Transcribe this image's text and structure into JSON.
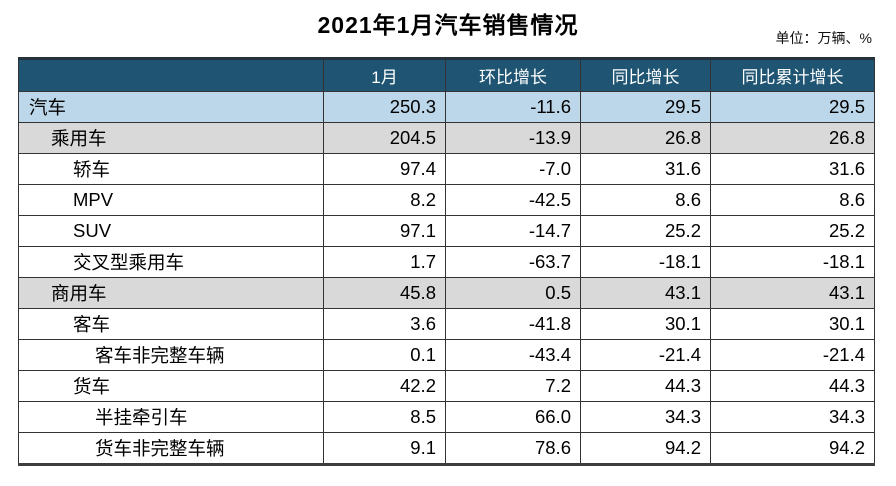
{
  "page": {
    "title": "2021年1月汽车销售情况",
    "unit_note": "单位：万辆、%"
  },
  "colors": {
    "header_bg": "#1F5573",
    "header_text": "#FFFFFF",
    "row_blue": "#BCD6EA",
    "row_gray": "#D9D9D9",
    "grid_line": "#333333"
  },
  "chart_data": {
    "type": "table",
    "title": "2021年1月汽车销售情况",
    "unit": "万辆、%",
    "columns": [
      "",
      "1月",
      "环比增长",
      "同比增长",
      "同比累计增长"
    ],
    "rows": [
      {
        "label": "汽车",
        "indent": 0,
        "highlight": "blue",
        "values": [
          "250.3",
          "-11.6",
          "29.5",
          "29.5"
        ]
      },
      {
        "label": "乘用车",
        "indent": 1,
        "highlight": "gray",
        "values": [
          "204.5",
          "-13.9",
          "26.8",
          "26.8"
        ]
      },
      {
        "label": "轿车",
        "indent": 2,
        "highlight": "none",
        "values": [
          "97.4",
          "-7.0",
          "31.6",
          "31.6"
        ]
      },
      {
        "label": "MPV",
        "indent": 2,
        "highlight": "none",
        "values": [
          "8.2",
          "-42.5",
          "8.6",
          "8.6"
        ]
      },
      {
        "label": "SUV",
        "indent": 2,
        "highlight": "none",
        "values": [
          "97.1",
          "-14.7",
          "25.2",
          "25.2"
        ]
      },
      {
        "label": "交叉型乘用车",
        "indent": 2,
        "highlight": "none",
        "values": [
          "1.7",
          "-63.7",
          "-18.1",
          "-18.1"
        ]
      },
      {
        "label": "商用车",
        "indent": 1,
        "highlight": "gray",
        "values": [
          "45.8",
          "0.5",
          "43.1",
          "43.1"
        ]
      },
      {
        "label": "客车",
        "indent": 2,
        "highlight": "none",
        "values": [
          "3.6",
          "-41.8",
          "30.1",
          "30.1"
        ]
      },
      {
        "label": "客车非完整车辆",
        "indent": 3,
        "highlight": "none",
        "values": [
          "0.1",
          "-43.4",
          "-21.4",
          "-21.4"
        ]
      },
      {
        "label": "货车",
        "indent": 2,
        "highlight": "none",
        "values": [
          "42.2",
          "7.2",
          "44.3",
          "44.3"
        ]
      },
      {
        "label": "半挂牵引车",
        "indent": 3,
        "highlight": "none",
        "values": [
          "8.5",
          "66.0",
          "34.3",
          "34.3"
        ]
      },
      {
        "label": "货车非完整车辆",
        "indent": 3,
        "highlight": "none",
        "values": [
          "9.1",
          "78.6",
          "94.2",
          "94.2"
        ]
      }
    ]
  }
}
